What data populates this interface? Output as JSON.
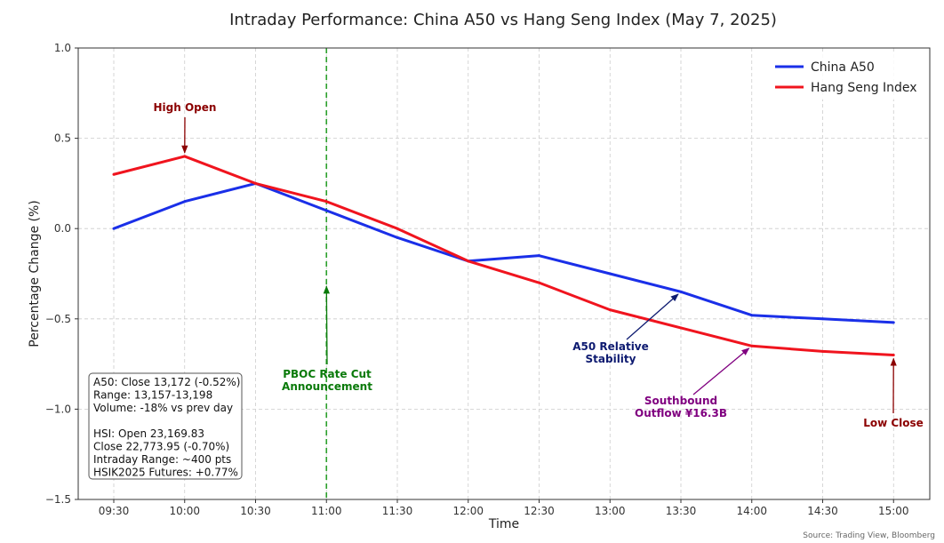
{
  "chart_data": {
    "type": "line",
    "title": "Intraday Performance: China A50 vs Hang Seng Index (May 7, 2025)",
    "xlabel": "Time",
    "ylabel": "Percentage Change (%)",
    "x": [
      "09:30",
      "10:00",
      "10:30",
      "11:00",
      "11:30",
      "12:00",
      "12:30",
      "13:00",
      "13:30",
      "14:00",
      "14:30",
      "15:00"
    ],
    "ylim": [
      -1.5,
      1.0
    ],
    "yticks": [
      "1.0",
      "0.5",
      "0.0",
      "-0.5",
      "-1.0",
      "-1.5"
    ],
    "grid": true,
    "legend_position": "top-right",
    "series": [
      {
        "name": "China A50",
        "color": "#1a2fe8",
        "values": [
          0.0,
          0.15,
          0.25,
          0.1,
          -0.05,
          -0.18,
          -0.15,
          -0.25,
          -0.35,
          -0.48,
          -0.5,
          -0.52
        ]
      },
      {
        "name": "Hang Seng Index",
        "color": "#f0141e",
        "values": [
          0.3,
          0.4,
          0.25,
          0.15,
          0.0,
          -0.18,
          -0.3,
          -0.45,
          -0.55,
          -0.65,
          -0.68,
          -0.7
        ]
      }
    ],
    "vline": {
      "x": "11:00",
      "color": "#2ca02c"
    },
    "annotations": [
      {
        "id": "high_open",
        "lines": [
          "High Open"
        ],
        "color": "#8b0000",
        "target": {
          "x": "10:00",
          "y": 0.4
        }
      },
      {
        "id": "pboc",
        "lines": [
          "PBOC Rate Cut",
          "Announcement"
        ],
        "color": "#0a7a0a",
        "target": {
          "x": "11:00",
          "y": -0.3
        }
      },
      {
        "id": "a50_stability",
        "lines": [
          "A50 Relative",
          "Stability"
        ],
        "color": "#0d1a70",
        "target": {
          "x": "13:30",
          "y": -0.35
        }
      },
      {
        "id": "southbound",
        "lines": [
          "Southbound",
          "Outflow ¥16.3B"
        ],
        "color": "#800080",
        "target": {
          "x": "14:00",
          "y": -0.65
        }
      },
      {
        "id": "low_close",
        "lines": [
          "Low Close"
        ],
        "color": "#8b0000",
        "target": {
          "x": "15:00",
          "y": -0.7
        }
      }
    ],
    "info_box": [
      "A50: Close 13,172 (-0.52%)",
      "Range: 13,157-13,198",
      "Volume: -18% vs prev day",
      "",
      "HSI: Open 23,169.83",
      "Close 22,773.95 (-0.70%)",
      "Intraday Range: ~400 pts",
      "HSIK2025 Futures: +0.77%"
    ],
    "source": "Source: Trading View, Bloomberg"
  }
}
